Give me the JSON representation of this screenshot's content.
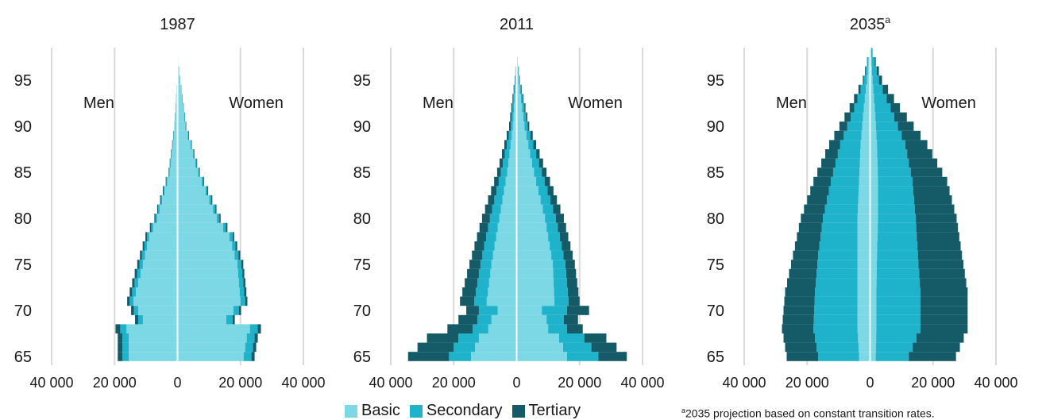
{
  "colors": {
    "basic": "#7dd8e6",
    "secondary": "#1fb2cb",
    "tertiary": "#145a67",
    "grid": "#d9d9d9",
    "center_line": "#ffffff"
  },
  "legend": {
    "basic": "Basic",
    "secondary": "Secondary",
    "tertiary": "Tertiary"
  },
  "footnote": {
    "marker": "a",
    "text": "2035 projection based on constant transition rates."
  },
  "chart_data": [
    {
      "type": "bar",
      "orientation": "horizontal-pyramid",
      "title": "1987",
      "left_label": "Men",
      "right_label": "Women",
      "x_range": [
        -40000,
        40000
      ],
      "x_ticks": [
        -40000,
        -20000,
        0,
        20000,
        40000
      ],
      "x_tick_labels": [
        "40 000",
        "20 000",
        "0",
        "20 000",
        "40 000"
      ],
      "y_ticks": [
        65,
        70,
        75,
        80,
        85,
        90,
        95
      ],
      "y_tick_labels": [
        "65",
        "70",
        "75",
        "80",
        "85",
        "90",
        "95"
      ],
      "age_range": [
        65,
        98
      ],
      "series": [
        {
          "name": "Basic"
        },
        {
          "name": "Secondary"
        },
        {
          "name": "Tertiary"
        }
      ],
      "men": {
        "ages": [
          65,
          67,
          68,
          69,
          71,
          75,
          78,
          80,
          85,
          90,
          95,
          98
        ],
        "basic": [
          15500,
          15500,
          16200,
          11000,
          14000,
          11000,
          9000,
          6500,
          2500,
          800,
          200,
          0
        ],
        "secondary": [
          2000,
          2000,
          2000,
          1500,
          1200,
          1100,
          700,
          500,
          200,
          100,
          0,
          0
        ],
        "tertiary": [
          1500,
          1500,
          1500,
          1000,
          800,
          700,
          500,
          350,
          150,
          50,
          0,
          0
        ]
      },
      "women": {
        "ages": [
          65,
          67,
          68,
          69,
          71,
          75,
          78,
          80,
          85,
          90,
          95,
          98
        ],
        "basic": [
          21000,
          22000,
          23000,
          15500,
          20000,
          19000,
          16500,
          12500,
          6500,
          2500,
          800,
          0
        ],
        "secondary": [
          2500,
          2500,
          2500,
          2000,
          1500,
          1300,
          1000,
          800,
          400,
          200,
          50,
          0
        ],
        "tertiary": [
          1000,
          1000,
          1000,
          700,
          700,
          600,
          500,
          400,
          200,
          100,
          0,
          0
        ]
      }
    },
    {
      "type": "bar",
      "orientation": "horizontal-pyramid",
      "title": "2011",
      "left_label": "Men",
      "right_label": "Women",
      "x_range": [
        -40000,
        40000
      ],
      "x_ticks": [
        -40000,
        -20000,
        0,
        20000,
        40000
      ],
      "x_tick_labels": [
        "40 000",
        "20 000",
        "0",
        "20 000",
        "40 000"
      ],
      "y_ticks": [
        65,
        70,
        75,
        80,
        85,
        90,
        95
      ],
      "y_tick_labels": [
        "65",
        "70",
        "75",
        "80",
        "85",
        "90",
        "95"
      ],
      "age_range": [
        65,
        98
      ],
      "series": [
        {
          "name": "Basic"
        },
        {
          "name": "Secondary"
        },
        {
          "name": "Tertiary"
        }
      ],
      "men": {
        "ages": [
          65,
          67,
          68,
          69,
          70,
          71,
          75,
          80,
          85,
          90,
          95,
          98
        ],
        "basic": [
          14500,
          12000,
          9000,
          8000,
          6000,
          9500,
          8000,
          5500,
          3000,
          1200,
          300,
          0
        ],
        "secondary": [
          7000,
          6500,
          5000,
          4500,
          6000,
          4000,
          3500,
          3000,
          2000,
          700,
          200,
          0
        ],
        "tertiary": [
          13000,
          10000,
          8000,
          6000,
          4000,
          4500,
          3500,
          2500,
          1200,
          500,
          100,
          0
        ]
      },
      "women": {
        "ages": [
          65,
          67,
          68,
          69,
          70,
          71,
          75,
          80,
          85,
          90,
          95,
          98
        ],
        "basic": [
          16000,
          13500,
          10000,
          9500,
          8000,
          12000,
          11500,
          9000,
          5500,
          2500,
          600,
          0
        ],
        "secondary": [
          10000,
          8000,
          6000,
          5500,
          8000,
          4500,
          4000,
          3500,
          2500,
          1000,
          300,
          0
        ],
        "tertiary": [
          9000,
          7000,
          5000,
          4500,
          7000,
          3500,
          3000,
          2500,
          1500,
          500,
          100,
          0
        ]
      }
    },
    {
      "type": "bar",
      "orientation": "horizontal-pyramid",
      "title": "2035",
      "title_note_marker": "a",
      "left_label": "Men",
      "right_label": "Women",
      "x_range": [
        -40000,
        40000
      ],
      "x_ticks": [
        -40000,
        -20000,
        0,
        20000,
        40000
      ],
      "x_tick_labels": [
        "40 000",
        "20 000",
        "0",
        "20 000",
        "40 000"
      ],
      "y_ticks": [
        65,
        70,
        75,
        80,
        85,
        90,
        95
      ],
      "y_tick_labels": [
        "65",
        "70",
        "75",
        "80",
        "85",
        "90",
        "95"
      ],
      "age_range": [
        65,
        98
      ],
      "series": [
        {
          "name": "Basic"
        },
        {
          "name": "Secondary"
        },
        {
          "name": "Tertiary"
        }
      ],
      "men": {
        "ages": [
          65,
          68,
          72,
          76,
          80,
          84,
          88,
          92,
          95,
          98
        ],
        "basic": [
          3500,
          4000,
          4000,
          4000,
          4000,
          3500,
          3000,
          2000,
          1000,
          300
        ],
        "secondary": [
          13000,
          14000,
          13500,
          12500,
          11000,
          9000,
          6500,
          3000,
          1000,
          0
        ],
        "tertiary": [
          10000,
          10000,
          9500,
          8000,
          7000,
          5500,
          3500,
          1500,
          300,
          0
        ]
      },
      "women": {
        "ages": [
          65,
          68,
          72,
          76,
          80,
          84,
          88,
          92,
          95,
          98
        ],
        "basic": [
          1800,
          2000,
          2000,
          2200,
          2500,
          2500,
          2200,
          1500,
          800,
          300
        ],
        "secondary": [
          10500,
          14000,
          14000,
          13000,
          12000,
          11000,
          9000,
          5000,
          2000,
          500
        ],
        "tertiary": [
          15000,
          15000,
          15000,
          14000,
          13000,
          11000,
          7000,
          3000,
          1000,
          0
        ]
      }
    }
  ]
}
